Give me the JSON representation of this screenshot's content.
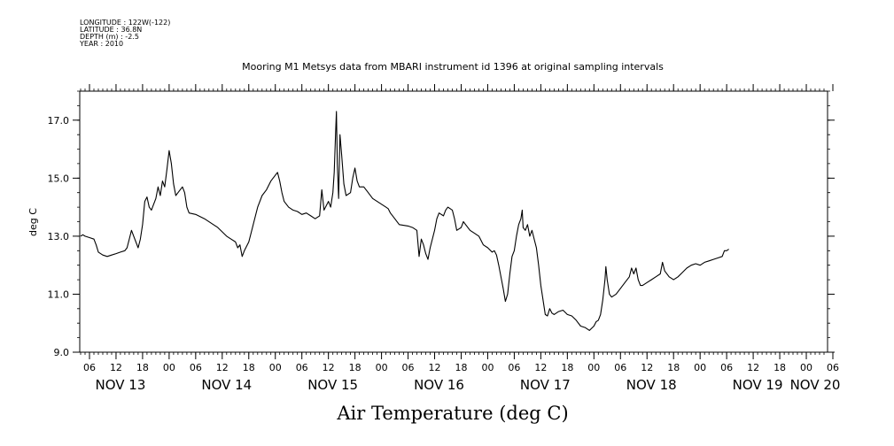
{
  "meta": {
    "longitude": "LONGITUDE : 122W(-122)",
    "latitude": "LATITUDE : 36.8N",
    "depth": "DEPTH (m) : -2.5",
    "year": "YEAR : 2010"
  },
  "chart_data": {
    "type": "line",
    "title": "Mooring M1 Metsys data from MBARI instrument id 1396 at original sampling intervals",
    "xlabel": "",
    "ylabel": "deg C",
    "bottom_label": "Air Temperature (deg C)",
    "line_color": "#000000",
    "grid": false,
    "ylim": [
      9.0,
      18.0
    ],
    "yticks": [
      9.0,
      11.0,
      13.0,
      15.0,
      17.0
    ],
    "ytick_labels": [
      "9.0",
      "11.0",
      "13.0",
      "15.0",
      "17.0"
    ],
    "x_units": "hours since Nov 13 00:00 (2010)",
    "xlim": [
      3.8,
      172.8
    ],
    "xticks": [
      6,
      12,
      18,
      24,
      30,
      36,
      42,
      48,
      54,
      60,
      66,
      72,
      78,
      84,
      90,
      96,
      102,
      108,
      114,
      120,
      126,
      132,
      138,
      144,
      150,
      156,
      162,
      168,
      174
    ],
    "xtick_labels": [
      "06",
      "12",
      "18",
      "00",
      "06",
      "12",
      "18",
      "00",
      "06",
      "12",
      "18",
      "00",
      "06",
      "12",
      "18",
      "00",
      "06",
      "12",
      "18",
      "00",
      "06",
      "12",
      "18",
      "00",
      "06",
      "12",
      "18",
      "00",
      "06"
    ],
    "day_labels": [
      {
        "x": 13,
        "label": "NOV 13"
      },
      {
        "x": 37,
        "label": "NOV 14"
      },
      {
        "x": 61,
        "label": "NOV 15"
      },
      {
        "x": 85,
        "label": "NOV 16"
      },
      {
        "x": 109,
        "label": "NOV 17"
      },
      {
        "x": 133,
        "label": "NOV 18"
      },
      {
        "x": 157,
        "label": "NOV 19"
      },
      {
        "x": 170,
        "label": "NOV 20"
      }
    ],
    "series": [
      {
        "points": [
          [
            4.0,
            13.0
          ],
          [
            4.5,
            13.05
          ],
          [
            5.0,
            13.0
          ],
          [
            6.0,
            12.95
          ],
          [
            7.0,
            12.9
          ],
          [
            7.5,
            12.7
          ],
          [
            8.0,
            12.45
          ],
          [
            9.0,
            12.35
          ],
          [
            10.0,
            12.3
          ],
          [
            11.0,
            12.35
          ],
          [
            12.0,
            12.4
          ],
          [
            13.0,
            12.45
          ],
          [
            14.0,
            12.5
          ],
          [
            14.5,
            12.6
          ],
          [
            15.0,
            12.9
          ],
          [
            15.5,
            13.2
          ],
          [
            16.0,
            13.0
          ],
          [
            17.0,
            12.6
          ],
          [
            17.5,
            12.9
          ],
          [
            18.0,
            13.4
          ],
          [
            18.5,
            14.2
          ],
          [
            19.0,
            14.35
          ],
          [
            19.5,
            14.0
          ],
          [
            20.0,
            13.9
          ],
          [
            21.0,
            14.3
          ],
          [
            21.5,
            14.7
          ],
          [
            22.0,
            14.4
          ],
          [
            22.5,
            14.9
          ],
          [
            23.0,
            14.7
          ],
          [
            23.5,
            15.3
          ],
          [
            24.0,
            15.95
          ],
          [
            24.5,
            15.5
          ],
          [
            25.0,
            14.8
          ],
          [
            25.5,
            14.4
          ],
          [
            26.0,
            14.5
          ],
          [
            27.0,
            14.7
          ],
          [
            27.5,
            14.5
          ],
          [
            28.0,
            14.0
          ],
          [
            28.5,
            13.8
          ],
          [
            30.0,
            13.75
          ],
          [
            32.0,
            13.6
          ],
          [
            34.0,
            13.4
          ],
          [
            35.0,
            13.3
          ],
          [
            36.0,
            13.15
          ],
          [
            37.0,
            13.0
          ],
          [
            38.0,
            12.9
          ],
          [
            39.0,
            12.8
          ],
          [
            39.5,
            12.6
          ],
          [
            40.0,
            12.7
          ],
          [
            40.5,
            12.3
          ],
          [
            41.0,
            12.5
          ],
          [
            42.0,
            12.8
          ],
          [
            42.5,
            13.1
          ],
          [
            43.0,
            13.4
          ],
          [
            44.0,
            14.0
          ],
          [
            45.0,
            14.4
          ],
          [
            46.0,
            14.6
          ],
          [
            47.0,
            14.9
          ],
          [
            48.0,
            15.1
          ],
          [
            48.5,
            15.2
          ],
          [
            49.0,
            14.9
          ],
          [
            49.5,
            14.5
          ],
          [
            50.0,
            14.2
          ],
          [
            51.0,
            14.0
          ],
          [
            52.0,
            13.9
          ],
          [
            53.0,
            13.85
          ],
          [
            54.0,
            13.75
          ],
          [
            55.0,
            13.8
          ],
          [
            56.0,
            13.7
          ],
          [
            57.0,
            13.6
          ],
          [
            58.0,
            13.7
          ],
          [
            58.5,
            14.6
          ],
          [
            59.0,
            13.9
          ],
          [
            60.0,
            14.2
          ],
          [
            60.5,
            14.0
          ],
          [
            61.0,
            14.5
          ],
          [
            61.3,
            15.2
          ],
          [
            61.6,
            16.5
          ],
          [
            61.8,
            17.3
          ],
          [
            62.0,
            15.5
          ],
          [
            62.3,
            14.3
          ],
          [
            62.6,
            16.5
          ],
          [
            63.0,
            15.8
          ],
          [
            63.5,
            14.8
          ],
          [
            64.0,
            14.4
          ],
          [
            65.0,
            14.5
          ],
          [
            65.5,
            15.0
          ],
          [
            66.0,
            15.35
          ],
          [
            66.5,
            14.9
          ],
          [
            67.0,
            14.7
          ],
          [
            68.0,
            14.7
          ],
          [
            69.0,
            14.5
          ],
          [
            70.0,
            14.3
          ],
          [
            71.0,
            14.2
          ],
          [
            72.0,
            14.1
          ],
          [
            73.0,
            14.0
          ],
          [
            73.5,
            13.95
          ],
          [
            74.0,
            13.8
          ],
          [
            75.0,
            13.6
          ],
          [
            76.0,
            13.4
          ],
          [
            78.0,
            13.35
          ],
          [
            79.0,
            13.3
          ],
          [
            80.0,
            13.2
          ],
          [
            80.5,
            12.3
          ],
          [
            81.0,
            12.9
          ],
          [
            81.5,
            12.7
          ],
          [
            82.0,
            12.4
          ],
          [
            82.5,
            12.2
          ],
          [
            83.0,
            12.6
          ],
          [
            84.0,
            13.2
          ],
          [
            84.5,
            13.6
          ],
          [
            85.0,
            13.8
          ],
          [
            86.0,
            13.7
          ],
          [
            86.5,
            13.9
          ],
          [
            87.0,
            14.0
          ],
          [
            88.0,
            13.9
          ],
          [
            88.5,
            13.6
          ],
          [
            89.0,
            13.2
          ],
          [
            90.0,
            13.3
          ],
          [
            90.5,
            13.5
          ],
          [
            91.0,
            13.4
          ],
          [
            92.0,
            13.2
          ],
          [
            93.0,
            13.1
          ],
          [
            94.0,
            13.0
          ],
          [
            95.0,
            12.7
          ],
          [
            96.0,
            12.6
          ],
          [
            97.0,
            12.45
          ],
          [
            97.5,
            12.5
          ],
          [
            98.0,
            12.35
          ],
          [
            98.5,
            12.0
          ],
          [
            99.0,
            11.6
          ],
          [
            99.5,
            11.2
          ],
          [
            100.0,
            10.75
          ],
          [
            100.5,
            11.0
          ],
          [
            101.0,
            11.7
          ],
          [
            101.5,
            12.3
          ],
          [
            102.0,
            12.5
          ],
          [
            102.5,
            13.0
          ],
          [
            103.0,
            13.4
          ],
          [
            103.5,
            13.6
          ],
          [
            103.8,
            13.9
          ],
          [
            104.0,
            13.3
          ],
          [
            104.5,
            13.2
          ],
          [
            105.0,
            13.4
          ],
          [
            105.5,
            13.0
          ],
          [
            106.0,
            13.2
          ],
          [
            106.5,
            12.9
          ],
          [
            107.0,
            12.6
          ],
          [
            107.5,
            12.0
          ],
          [
            108.0,
            11.3
          ],
          [
            108.5,
            10.8
          ],
          [
            109.0,
            10.3
          ],
          [
            109.5,
            10.25
          ],
          [
            110.0,
            10.5
          ],
          [
            110.5,
            10.35
          ],
          [
            111.0,
            10.3
          ],
          [
            112.0,
            10.4
          ],
          [
            113.0,
            10.45
          ],
          [
            114.0,
            10.3
          ],
          [
            115.0,
            10.25
          ],
          [
            116.0,
            10.1
          ],
          [
            117.0,
            9.9
          ],
          [
            118.0,
            9.85
          ],
          [
            119.0,
            9.75
          ],
          [
            120.0,
            9.9
          ],
          [
            120.5,
            10.05
          ],
          [
            121.0,
            10.1
          ],
          [
            121.5,
            10.3
          ],
          [
            122.0,
            10.8
          ],
          [
            122.5,
            11.5
          ],
          [
            122.7,
            11.95
          ],
          [
            123.0,
            11.5
          ],
          [
            123.5,
            11.0
          ],
          [
            124.0,
            10.9
          ],
          [
            125.0,
            11.0
          ],
          [
            126.0,
            11.2
          ],
          [
            127.0,
            11.4
          ],
          [
            128.0,
            11.6
          ],
          [
            128.5,
            11.9
          ],
          [
            129.0,
            11.7
          ],
          [
            129.5,
            11.9
          ],
          [
            130.0,
            11.5
          ],
          [
            130.5,
            11.3
          ],
          [
            131.0,
            11.3
          ],
          [
            132.0,
            11.4
          ],
          [
            133.0,
            11.5
          ],
          [
            134.0,
            11.6
          ],
          [
            135.0,
            11.7
          ],
          [
            135.5,
            12.1
          ],
          [
            136.0,
            11.8
          ],
          [
            137.0,
            11.6
          ],
          [
            138.0,
            11.5
          ],
          [
            139.0,
            11.6
          ],
          [
            140.0,
            11.75
          ],
          [
            141.0,
            11.9
          ],
          [
            142.0,
            12.0
          ],
          [
            143.0,
            12.05
          ],
          [
            144.0,
            12.0
          ],
          [
            145.0,
            12.1
          ],
          [
            146.0,
            12.15
          ],
          [
            147.0,
            12.2
          ],
          [
            148.0,
            12.25
          ],
          [
            149.0,
            12.3
          ],
          [
            149.5,
            12.5
          ],
          [
            150.0,
            12.5
          ],
          [
            150.5,
            12.55
          ]
        ]
      }
    ]
  }
}
